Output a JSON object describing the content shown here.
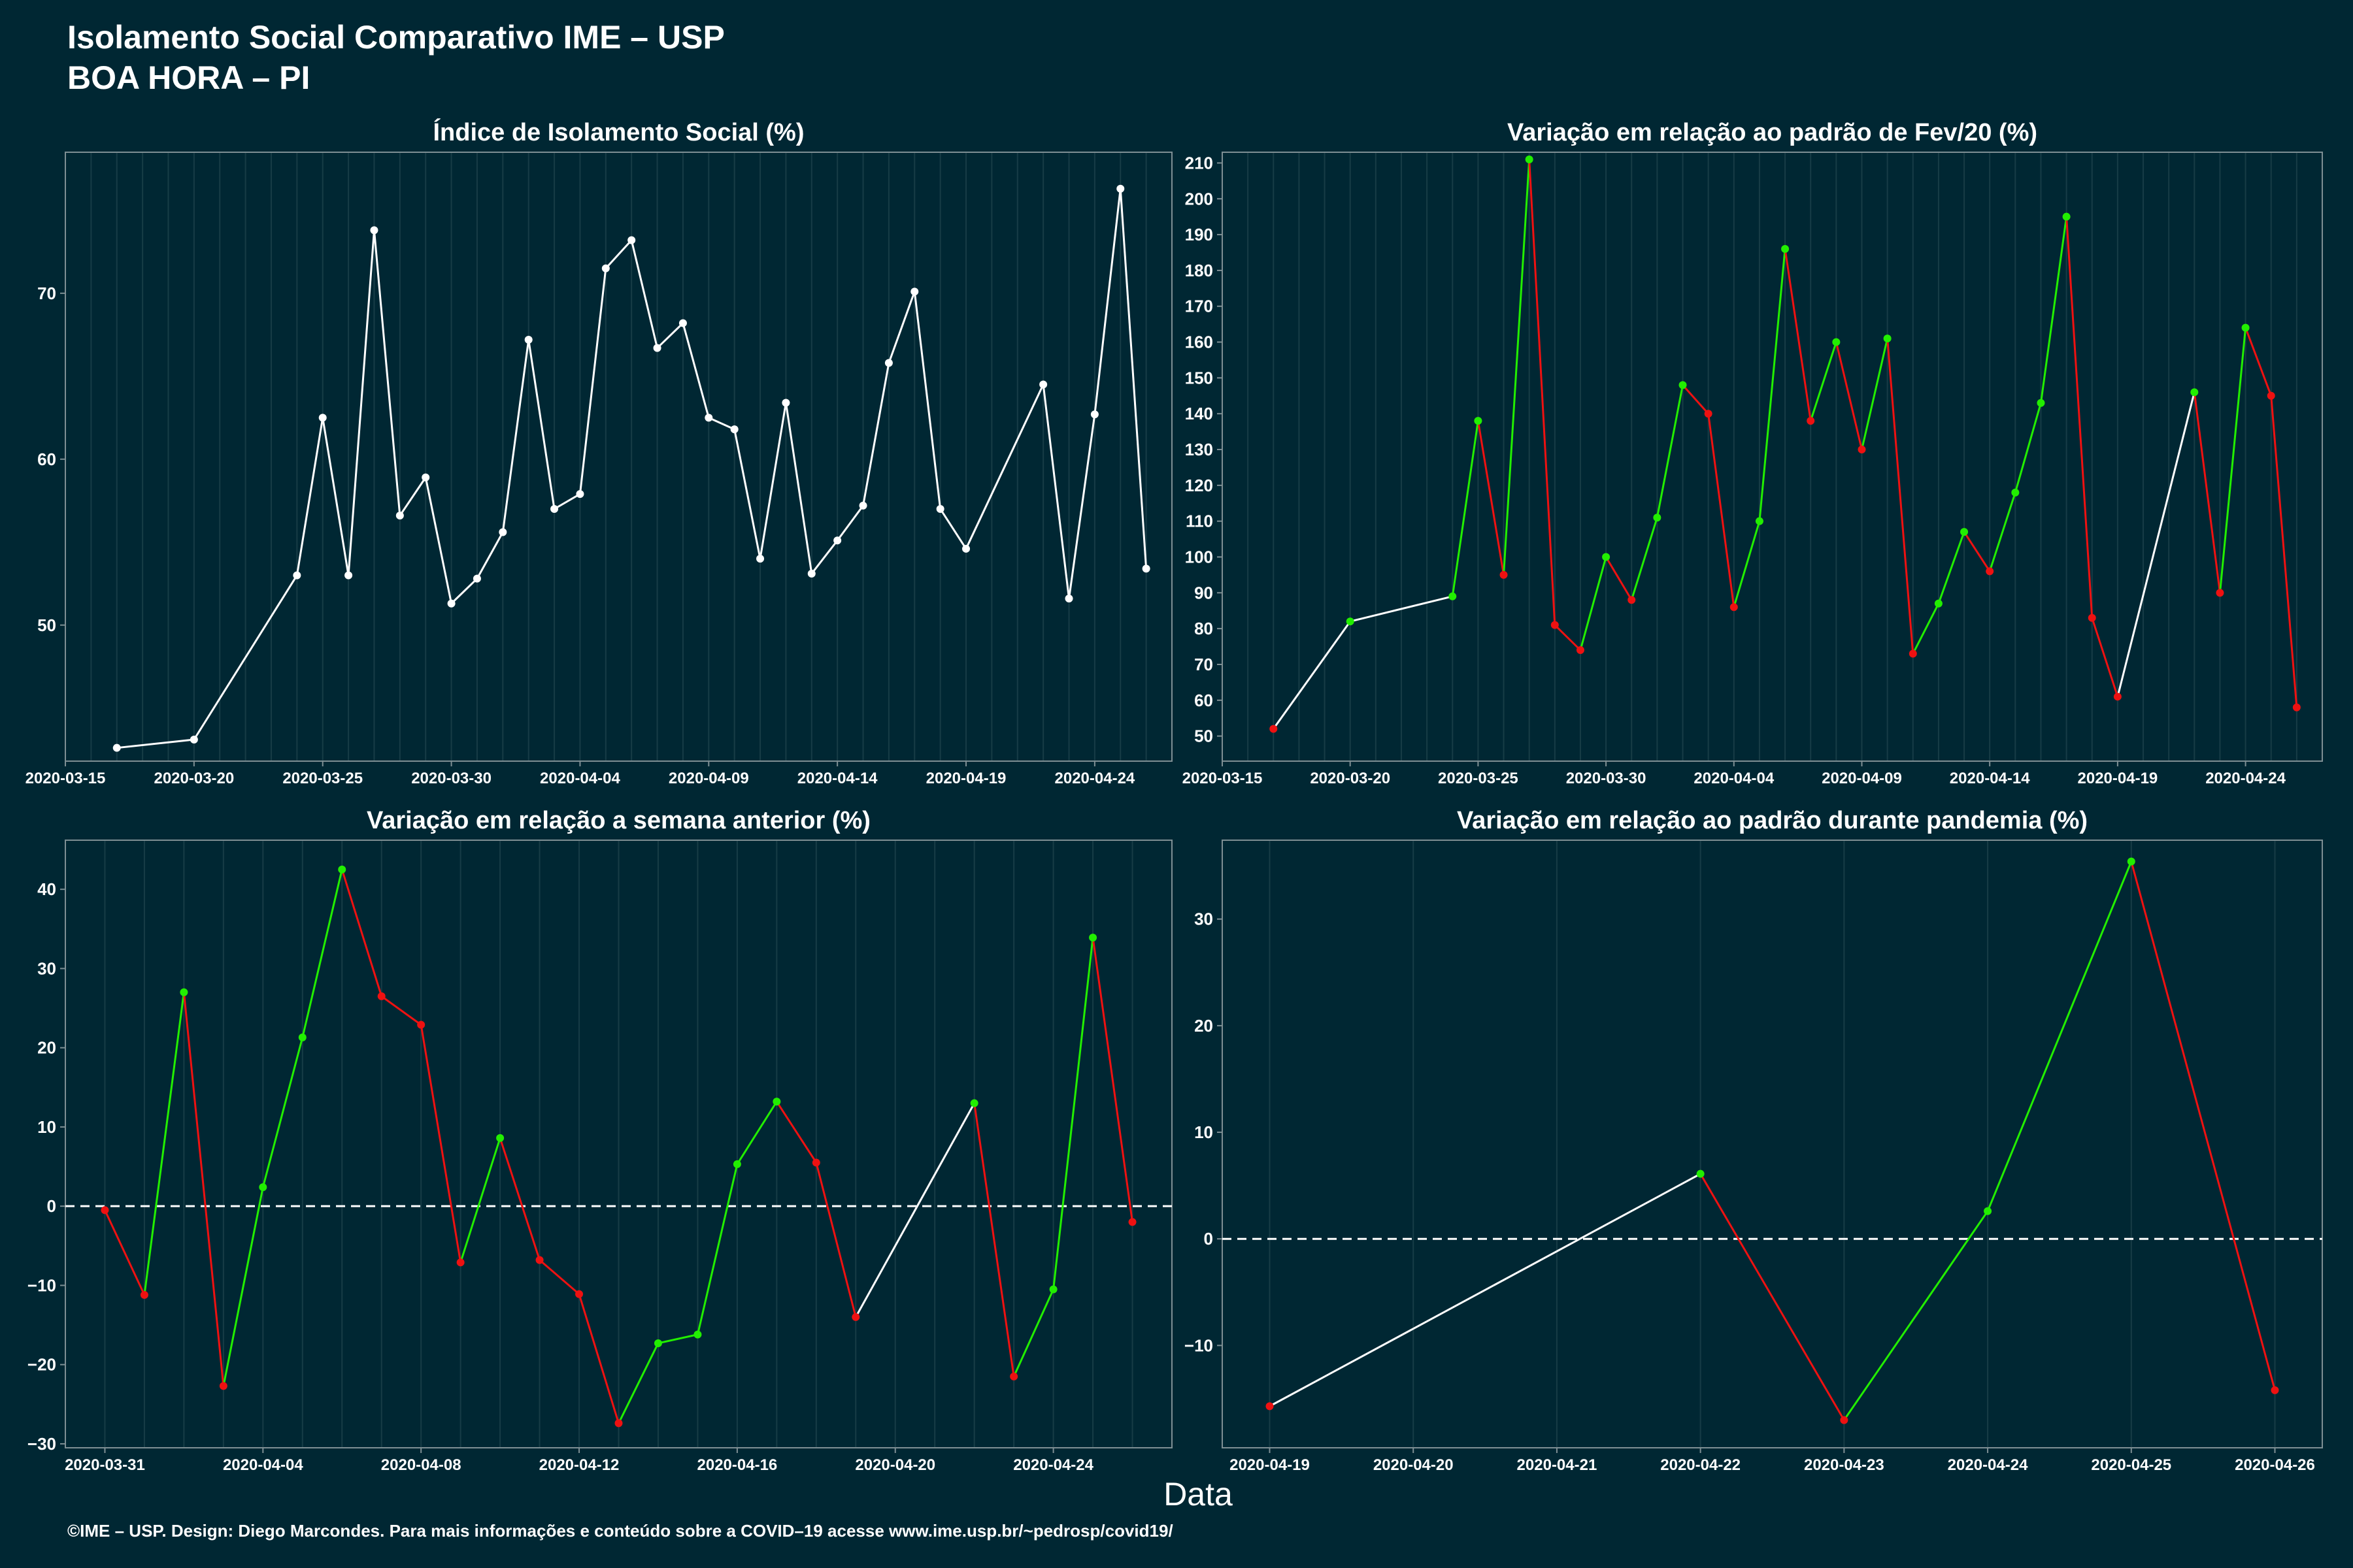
{
  "page": {
    "title_line1": "Isolamento Social Comparativo IME – USP",
    "title_line2": "BOA HORA – PI",
    "xlabel": "Data",
    "footer": "©IME – USP. Design: Diego Marcondes. Para mais informações e conteúdo sobre a COVID–19 acesse www.ime.usp.br/~pedrosp/covid19/"
  },
  "colors": {
    "background": "#002733",
    "panel_border": "#7f8f94",
    "grid": "#173c46",
    "white": "#ffffff",
    "green": "#22ee00",
    "red": "#ee1111"
  },
  "chart_data": [
    {
      "id": "isolamento",
      "type": "line",
      "title": "Índice de Isolamento Social (%)",
      "coloring": "white",
      "x_ticks": [
        "2020-03-15",
        "2020-03-20",
        "2020-03-25",
        "2020-03-30",
        "2020-04-04",
        "2020-04-09",
        "2020-04-14",
        "2020-04-19",
        "2020-04-24"
      ],
      "y_ticks": [
        50,
        60,
        70
      ],
      "xlim": [
        "2020-03-15",
        "2020-04-27"
      ],
      "ylim": [
        41.8,
        78.5
      ],
      "zero_line": false,
      "x": [
        "2020-03-17",
        "2020-03-20",
        "2020-03-24",
        "2020-03-25",
        "2020-03-26",
        "2020-03-27",
        "2020-03-28",
        "2020-03-29",
        "2020-03-30",
        "2020-03-31",
        "2020-04-01",
        "2020-04-02",
        "2020-04-03",
        "2020-04-04",
        "2020-04-05",
        "2020-04-06",
        "2020-04-07",
        "2020-04-08",
        "2020-04-09",
        "2020-04-10",
        "2020-04-11",
        "2020-04-12",
        "2020-04-13",
        "2020-04-14",
        "2020-04-15",
        "2020-04-16",
        "2020-04-17",
        "2020-04-18",
        "2020-04-19",
        "2020-04-22",
        "2020-04-23",
        "2020-04-24",
        "2020-04-25",
        "2020-04-26"
      ],
      "y": [
        42.6,
        43.1,
        53.0,
        62.5,
        53.0,
        73.8,
        56.6,
        58.9,
        51.3,
        52.8,
        55.6,
        67.2,
        57.0,
        57.9,
        71.5,
        73.2,
        66.7,
        68.2,
        62.5,
        61.8,
        54.0,
        63.4,
        53.1,
        55.1,
        57.2,
        65.8,
        70.1,
        57.0,
        54.6,
        64.5,
        51.6,
        62.7,
        76.3,
        53.4
      ]
    },
    {
      "id": "fev20",
      "type": "line",
      "title": "Variação em relação ao padrão de Fev/20 (%)",
      "coloring": "sign",
      "x_ticks": [
        "2020-03-15",
        "2020-03-20",
        "2020-03-25",
        "2020-03-30",
        "2020-04-04",
        "2020-04-09",
        "2020-04-14",
        "2020-04-19",
        "2020-04-24"
      ],
      "y_ticks": [
        50,
        60,
        70,
        80,
        90,
        100,
        110,
        120,
        130,
        140,
        150,
        160,
        170,
        180,
        190,
        200,
        210
      ],
      "xlim": [
        "2020-03-15",
        "2020-04-27"
      ],
      "ylim": [
        43,
        213
      ],
      "zero_line": false,
      "x": [
        "2020-03-17",
        "2020-03-20",
        "2020-03-24",
        "2020-03-25",
        "2020-03-26",
        "2020-03-27",
        "2020-03-28",
        "2020-03-29",
        "2020-03-30",
        "2020-03-31",
        "2020-04-01",
        "2020-04-02",
        "2020-04-03",
        "2020-04-04",
        "2020-04-05",
        "2020-04-06",
        "2020-04-07",
        "2020-04-08",
        "2020-04-09",
        "2020-04-10",
        "2020-04-11",
        "2020-04-12",
        "2020-04-13",
        "2020-04-14",
        "2020-04-15",
        "2020-04-16",
        "2020-04-17",
        "2020-04-18",
        "2020-04-19",
        "2020-04-22",
        "2020-04-23",
        "2020-04-24",
        "2020-04-25",
        "2020-04-26"
      ],
      "y": [
        52,
        82,
        89,
        138,
        95,
        211,
        81,
        74,
        100,
        88,
        111,
        148,
        140,
        86,
        110,
        186,
        138,
        160,
        130,
        161,
        73,
        87,
        107,
        96,
        118,
        143,
        195,
        83,
        61,
        146,
        90,
        164,
        145,
        58
      ]
    },
    {
      "id": "semana",
      "type": "line",
      "title": "Variação em relação a semana anterior (%)",
      "coloring": "sign",
      "x_ticks": [
        "2020-03-31",
        "2020-04-04",
        "2020-04-08",
        "2020-04-12",
        "2020-04-16",
        "2020-04-20",
        "2020-04-24"
      ],
      "y_ticks": [
        -30,
        -20,
        -10,
        0,
        10,
        20,
        30,
        40
      ],
      "xlim": [
        "2020-03-30",
        "2020-04-27"
      ],
      "ylim": [
        -30.5,
        46.2
      ],
      "zero_line": true,
      "x": [
        "2020-03-31",
        "2020-04-01",
        "2020-04-02",
        "2020-04-03",
        "2020-04-04",
        "2020-04-05",
        "2020-04-06",
        "2020-04-07",
        "2020-04-08",
        "2020-04-09",
        "2020-04-10",
        "2020-04-11",
        "2020-04-12",
        "2020-04-13",
        "2020-04-14",
        "2020-04-15",
        "2020-04-16",
        "2020-04-17",
        "2020-04-18",
        "2020-04-19",
        "2020-04-22",
        "2020-04-23",
        "2020-04-24",
        "2020-04-25",
        "2020-04-26"
      ],
      "y": [
        -0.5,
        -11.2,
        27.0,
        -22.7,
        2.4,
        21.3,
        42.5,
        26.5,
        22.9,
        -7.1,
        8.6,
        -6.8,
        -11.1,
        -27.4,
        -17.3,
        -16.2,
        5.3,
        13.2,
        5.5,
        -14.0,
        13.0,
        -21.5,
        -10.5,
        33.9,
        -2.0
      ]
    },
    {
      "id": "pandemia",
      "type": "line",
      "title": "Variação em relação ao padrão durante pandemia (%)",
      "coloring": "sign",
      "x_ticks": [
        "2020-04-19",
        "2020-04-20",
        "2020-04-21",
        "2020-04-22",
        "2020-04-23",
        "2020-04-24",
        "2020-04-25",
        "2020-04-26"
      ],
      "y_ticks": [
        -10,
        0,
        10,
        20,
        30
      ],
      "xlim": [
        "2020-04-18.67",
        "2020-04-26.33"
      ],
      "ylim": [
        -19.6,
        37.4
      ],
      "zero_line": true,
      "x": [
        "2020-04-19",
        "2020-04-22",
        "2020-04-23",
        "2020-04-24",
        "2020-04-25",
        "2020-04-26"
      ],
      "y": [
        -15.7,
        6.1,
        -17.0,
        2.6,
        35.4,
        -14.2
      ]
    }
  ]
}
